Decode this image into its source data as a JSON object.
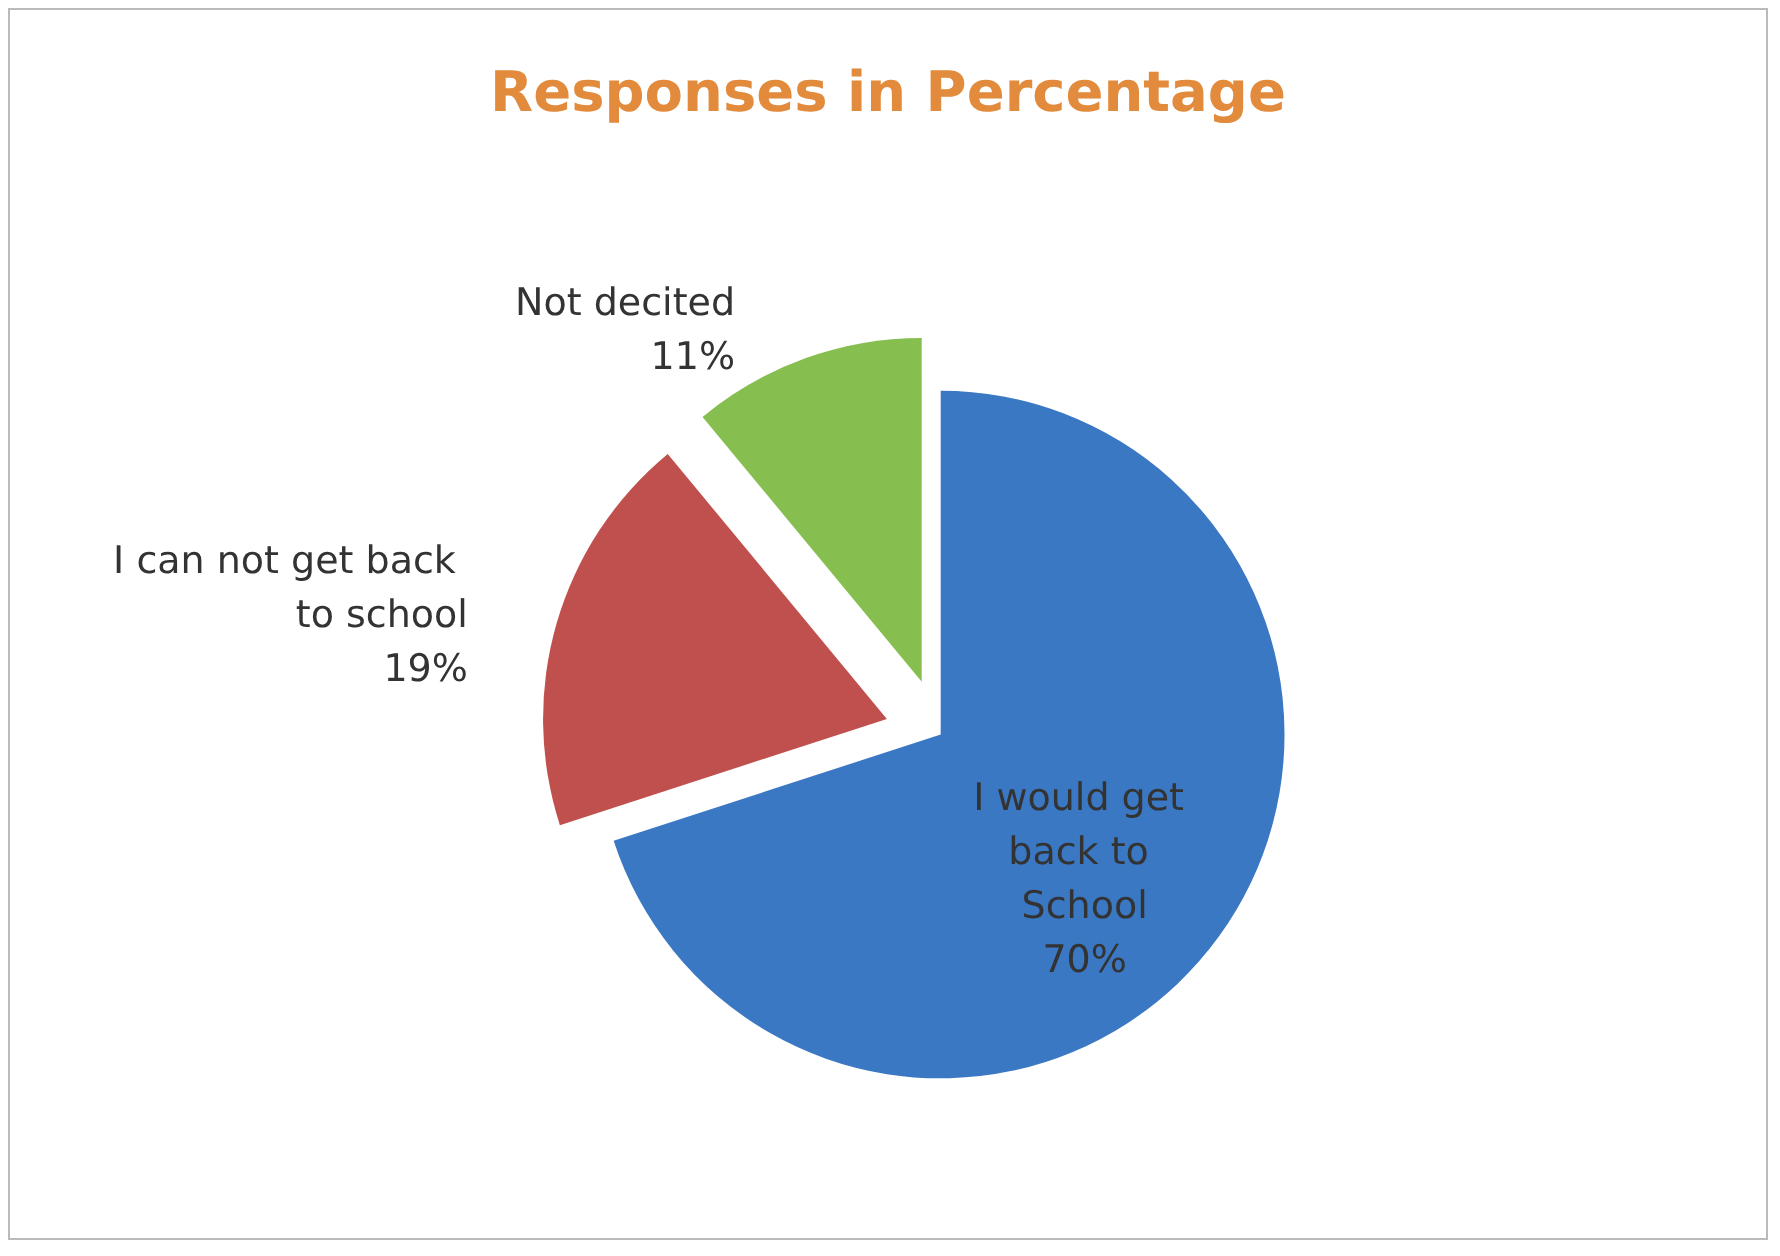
{
  "chart_data": {
    "type": "pie",
    "title": "Responses in Percentage",
    "categories": [
      "I would get back to School",
      "I can not get back to school",
      "Not decited"
    ],
    "values": [
      70,
      19,
      11
    ],
    "value_labels": [
      "70%",
      "19%",
      "11%"
    ],
    "colors": [
      "#3b78c3",
      "#c0504d",
      "#86bf4f"
    ],
    "legend": false
  }
}
